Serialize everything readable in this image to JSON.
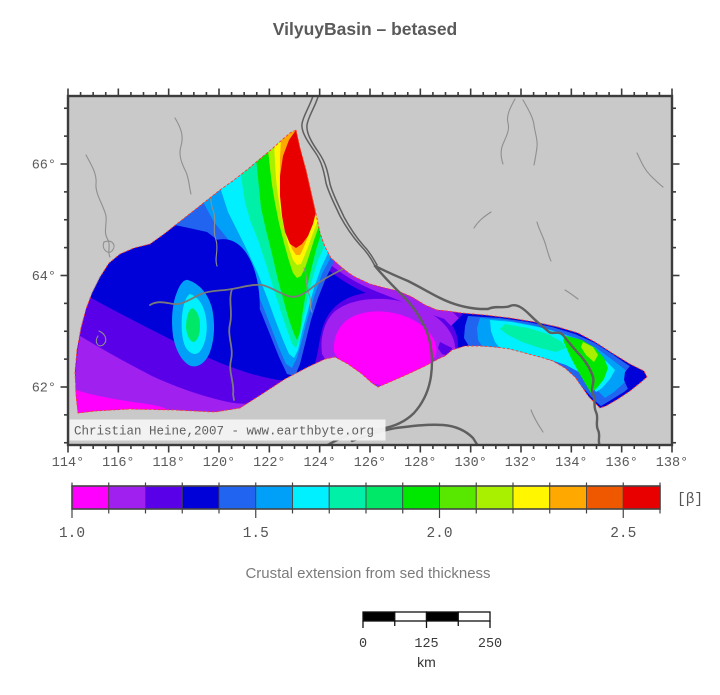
{
  "title": "VilyuyBasin – betased",
  "caption": "Crustal extension from sed thickness",
  "map": {
    "copyright": "Christian Heine,2007 - www.earthbyte.org",
    "lon_min": 114,
    "lon_max": 138,
    "x_tick_labels": [
      "114°",
      "116°",
      "118°",
      "120°",
      "122°",
      "124°",
      "126°",
      "128°",
      "130°",
      "132°",
      "134°",
      "136°",
      "138°"
    ],
    "y_tick_labels": [
      "66°",
      "64°",
      "62°"
    ],
    "y_tick_values": [
      66,
      64,
      62
    ]
  },
  "colorbar": {
    "unit": "[β]",
    "tick_labels": [
      "1.0",
      "1.5",
      "2.0",
      "2.5"
    ],
    "range_min": 1.0,
    "range_max": 2.6,
    "segment_step": 0.1,
    "colors": [
      "#ff00ff",
      "#a020f0",
      "#5a00e8",
      "#0000d8",
      "#2064f0",
      "#00a0f8",
      "#00f0ff",
      "#00f0a8",
      "#00e868",
      "#00e800",
      "#58e800",
      "#a8f000",
      "#fff600",
      "#ffa800",
      "#f05800",
      "#e80000"
    ]
  },
  "scalebar": {
    "labels": [
      "0",
      "125",
      "250"
    ],
    "unit": "km"
  },
  "palette": {
    "map_bg": "#c9c9c9",
    "frame": "#3c3c3c",
    "river_thin": "#8f8f8f",
    "river_med": "#7a7a7a",
    "river_thick": "#5f5f5f",
    "outline_red": "#ff3828",
    "magenta": "#ff00ff",
    "purple": "#a020f0",
    "violet": "#5a00e8",
    "dblue": "#0000d8",
    "royal": "#2064f0",
    "lblue": "#00a0f8",
    "cyan": "#00f0ff",
    "teal": "#00f0a8",
    "teal2": "#00e868",
    "green": "#00e800",
    "ygreen": "#a8f000",
    "yellow": "#fff600",
    "orange": "#ffa800",
    "red": "#e80000"
  }
}
